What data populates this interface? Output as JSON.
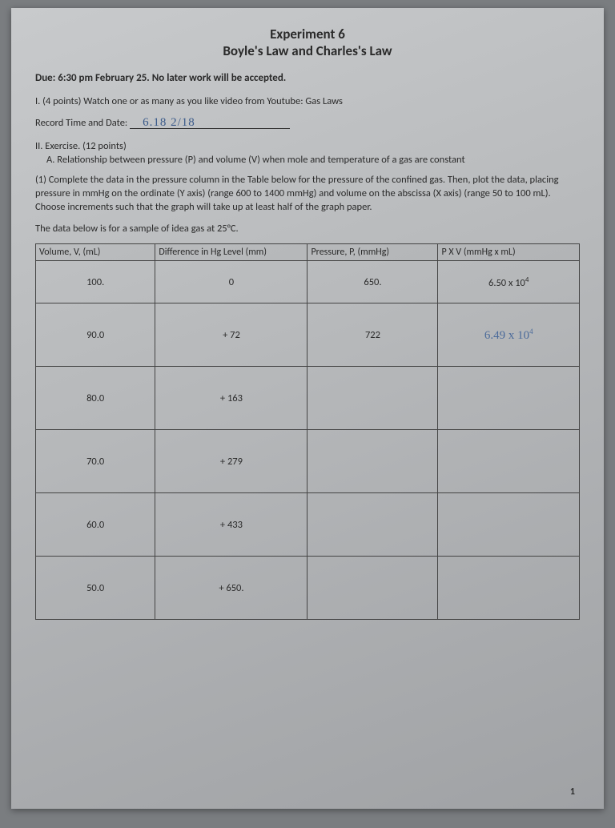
{
  "header": {
    "experiment": "Experiment 6",
    "title": "Boyle's Law and Charles's Law"
  },
  "due": "Due: 6:30 pm February 25. No later work will be accepted.",
  "q1": {
    "text": "I.  (4 points) Watch one or as many as you like video from Youtube: Gas Laws",
    "record_label": "Record Time and Date:",
    "handwritten": "6.18       2/18"
  },
  "q2": {
    "heading": "II. Exercise. (12 points)",
    "partA": "A.   Relationship between pressure (P)  and volume (V) when mole and temperature of a gas are constant",
    "instr": "(1) Complete the data in the pressure column in the Table below for the pressure of the confined gas. Then, plot the data, placing pressure in mmHg on the ordinate (Y axis) (range 600 to 1400 mmHg) and volume on the abscissa (X axis) (range 50 to 100 mL). Choose increments such that the graph will take up at least half of the graph paper.",
    "note": "The data below is for a sample of idea gas at 25°C."
  },
  "table": {
    "columns": [
      "Volume, V,  (mL)",
      "Difference in Hg Level (mm)",
      "Pressure, P,  (mmHg)",
      "P X V (mmHg x mL)"
    ],
    "rows": [
      {
        "v": "100.",
        "d": "0",
        "p": "650.",
        "pv": "6.50 x 10",
        "pv_sup": "4",
        "hand": false
      },
      {
        "v": "90.0",
        "d": "+ 72",
        "p": "722",
        "pv": "6.49 x 10",
        "pv_sup": "4",
        "hand": true
      },
      {
        "v": "80.0",
        "d": "+ 163",
        "p": "",
        "pv": "",
        "pv_sup": "",
        "hand": false
      },
      {
        "v": "70.0",
        "d": "+ 279",
        "p": "",
        "pv": "",
        "pv_sup": "",
        "hand": false
      },
      {
        "v": "60.0",
        "d": "+ 433",
        "p": "",
        "pv": "",
        "pv_sup": "",
        "hand": false
      },
      {
        "v": "50.0",
        "d": "+ 650.",
        "p": "",
        "pv": "",
        "pv_sup": "",
        "hand": false
      }
    ]
  },
  "page_number": "1",
  "style": {
    "paper_bg": "#b8babc",
    "text_color": "#2a2a2a",
    "border_color": "#444444",
    "handwrite_color": "#4a6a9a",
    "col_widths_pct": [
      22,
      28,
      24,
      26
    ]
  }
}
